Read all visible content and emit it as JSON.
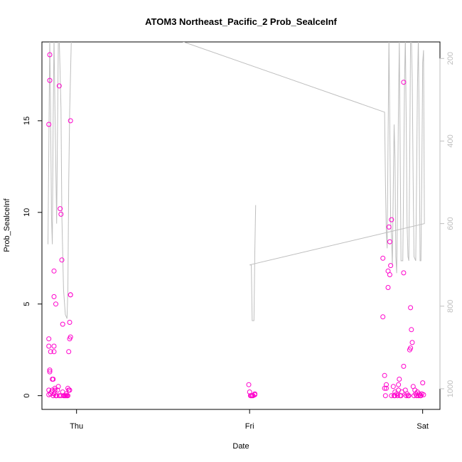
{
  "chart_data": {
    "type": "scatter",
    "title": "ATOM3 Northeast_Pacific_2 Prob_SealceInf",
    "xlabel": "Date",
    "ylabel": "Prob_SealceInf",
    "x_ticks": [
      "Thu",
      "Fri",
      "Sat"
    ],
    "y_ticks": [
      "0",
      "5",
      "10",
      "15"
    ],
    "y2_ticks": [
      "200",
      "400",
      "600",
      "800",
      "1000"
    ],
    "xlim": [
      -0.2,
      2.1
    ],
    "ylim": [
      -0.75,
      19.3
    ],
    "y2lim": [
      1050,
      160
    ],
    "grid": false,
    "point_color": "#FF00CC",
    "line_color": "#BEBEBE",
    "series": [
      {
        "points": [
          [
            -0.16,
            0.05
          ],
          [
            -0.16,
            0.3
          ],
          [
            -0.16,
            2.7
          ],
          [
            -0.16,
            3.1
          ],
          [
            -0.16,
            14.8
          ],
          [
            -0.155,
            17.2
          ],
          [
            -0.155,
            18.6
          ],
          [
            -0.155,
            1.3
          ],
          [
            -0.155,
            1.4
          ],
          [
            -0.15,
            0.1
          ],
          [
            -0.15,
            2.4
          ],
          [
            -0.145,
            0.2
          ],
          [
            -0.14,
            0.3
          ],
          [
            -0.14,
            0.9
          ],
          [
            -0.135,
            0.0
          ],
          [
            -0.135,
            0.9
          ],
          [
            -0.13,
            0.1
          ],
          [
            -0.13,
            2.4
          ],
          [
            -0.13,
            2.7
          ],
          [
            -0.13,
            6.8
          ],
          [
            -0.13,
            5.4
          ],
          [
            -0.125,
            0.3
          ],
          [
            -0.125,
            0.4
          ],
          [
            -0.12,
            0.0
          ],
          [
            -0.12,
            5.0
          ],
          [
            -0.115,
            0.0
          ],
          [
            -0.11,
            0.3
          ],
          [
            -0.105,
            0.5
          ],
          [
            -0.1,
            0.0
          ],
          [
            -0.1,
            16.9
          ],
          [
            -0.095,
            10.2
          ],
          [
            -0.09,
            9.9
          ],
          [
            -0.09,
            0.0
          ],
          [
            -0.085,
            7.4
          ],
          [
            -0.08,
            3.9
          ],
          [
            -0.08,
            0.2
          ],
          [
            -0.075,
            0.0
          ],
          [
            -0.07,
            0.0
          ],
          [
            -0.065,
            0.0
          ],
          [
            -0.06,
            0.0
          ],
          [
            -0.06,
            0.1
          ],
          [
            -0.055,
            0.0
          ],
          [
            -0.05,
            0.0
          ],
          [
            -0.05,
            0.4
          ],
          [
            -0.045,
            2.4
          ],
          [
            -0.045,
            0.3
          ],
          [
            -0.04,
            0.3
          ],
          [
            -0.04,
            3.1
          ],
          [
            -0.04,
            4.0
          ],
          [
            -0.035,
            3.2
          ],
          [
            -0.035,
            15.0
          ],
          [
            -0.035,
            5.5
          ],
          [
            -0.035,
            5.5
          ],
          [
            0.995,
            0.6
          ],
          [
            1.0,
            0.2
          ],
          [
            1.005,
            0.0
          ],
          [
            1.01,
            0.0
          ],
          [
            1.015,
            0.0
          ],
          [
            1.02,
            0.0
          ],
          [
            1.03,
            0.05
          ],
          [
            1.03,
            0.1
          ],
          [
            1.77,
            7.5
          ],
          [
            1.77,
            4.3
          ],
          [
            1.78,
            1.1
          ],
          [
            1.78,
            0.4
          ],
          [
            1.785,
            0.0
          ],
          [
            1.79,
            0.4
          ],
          [
            1.79,
            0.6
          ],
          [
            1.8,
            6.8
          ],
          [
            1.8,
            5.9
          ],
          [
            1.805,
            9.2
          ],
          [
            1.81,
            8.4
          ],
          [
            1.81,
            6.6
          ],
          [
            1.815,
            7.1
          ],
          [
            1.82,
            9.6
          ],
          [
            1.82,
            0.0
          ],
          [
            1.83,
            0.5
          ],
          [
            1.835,
            0.0
          ],
          [
            1.84,
            0.2
          ],
          [
            1.84,
            0.0
          ],
          [
            1.85,
            0.1
          ],
          [
            1.855,
            0.0
          ],
          [
            1.86,
            0.3
          ],
          [
            1.86,
            0.6
          ],
          [
            1.865,
            0.9
          ],
          [
            1.87,
            0.0
          ],
          [
            1.875,
            0.0
          ],
          [
            1.88,
            0.2
          ],
          [
            1.89,
            6.7
          ],
          [
            1.89,
            17.1
          ],
          [
            1.89,
            1.6
          ],
          [
            1.9,
            0.3
          ],
          [
            1.905,
            0.0
          ],
          [
            1.91,
            0.1
          ],
          [
            1.915,
            0.0
          ],
          [
            1.92,
            0.0
          ],
          [
            1.925,
            2.5
          ],
          [
            1.93,
            4.8
          ],
          [
            1.93,
            2.6
          ],
          [
            1.935,
            3.6
          ],
          [
            1.94,
            2.9
          ],
          [
            1.945,
            0.5
          ],
          [
            1.95,
            0.0
          ],
          [
            1.955,
            0.3
          ],
          [
            1.96,
            0.1
          ],
          [
            1.965,
            0.0
          ],
          [
            1.97,
            0.2
          ],
          [
            1.975,
            0.0
          ],
          [
            1.98,
            0.1
          ],
          [
            1.985,
            0.0
          ],
          [
            1.99,
            0.0
          ],
          [
            1.995,
            0.1
          ],
          [
            2.0,
            0.7
          ],
          [
            2.005,
            0.05
          ]
        ]
      },
      {
        "axis": "right",
        "points": [
          [
            -0.165,
            650
          ],
          [
            -0.16,
            420
          ],
          [
            -0.155,
            150
          ],
          [
            -0.15,
            330
          ],
          [
            -0.145,
            580
          ],
          [
            -0.14,
            650
          ],
          [
            -0.135,
            350
          ],
          [
            -0.13,
            150
          ],
          [
            -0.125,
            320
          ],
          [
            -0.115,
            600
          ],
          [
            -0.105,
            150
          ],
          [
            -0.1,
            150
          ],
          [
            -0.09,
            320
          ],
          [
            -0.085,
            580
          ],
          [
            -0.075,
            760
          ],
          [
            -0.065,
            820
          ],
          [
            -0.055,
            830
          ],
          [
            -0.05,
            760
          ],
          [
            -0.045,
            500
          ],
          [
            -0.04,
            330
          ],
          [
            -0.03,
            150
          ],
          [
            0.55,
            150
          ],
          [
            1.78,
            330
          ],
          [
            1.785,
            500
          ],
          [
            1.79,
            620
          ],
          [
            1.795,
            660
          ],
          [
            1.8,
            400
          ],
          [
            1.805,
            150
          ],
          [
            1.81,
            360
          ],
          [
            1.815,
            590
          ],
          [
            1.82,
            630
          ],
          [
            1.825,
            700
          ],
          [
            1.83,
            520
          ],
          [
            1.835,
            360
          ],
          [
            1.84,
            440
          ],
          [
            1.845,
            680
          ],
          [
            1.85,
            720
          ],
          [
            1.855,
            560
          ],
          [
            1.86,
            320
          ],
          [
            1.865,
            160
          ],
          [
            1.87,
            420
          ],
          [
            1.875,
            690
          ],
          [
            1.885,
            690
          ],
          [
            1.89,
            500
          ],
          [
            1.895,
            260
          ],
          [
            1.9,
            150
          ],
          [
            1.905,
            350
          ],
          [
            1.91,
            600
          ],
          [
            1.915,
            680
          ],
          [
            1.92,
            690
          ],
          [
            1.925,
            450
          ],
          [
            1.93,
            160
          ],
          [
            1.935,
            150
          ],
          [
            1.94,
            250
          ],
          [
            1.945,
            500
          ],
          [
            1.95,
            680
          ],
          [
            1.96,
            690
          ],
          [
            1.965,
            500
          ],
          [
            1.97,
            270
          ],
          [
            1.975,
            150
          ],
          [
            1.98,
            380
          ],
          [
            1.985,
            690
          ],
          [
            1.99,
            690
          ],
          [
            1.995,
            500
          ],
          [
            2.0,
            210
          ],
          [
            2.005,
            180
          ],
          [
            2.01,
            600
          ],
          [
            1.0,
            700
          ],
          [
            1.01,
            700
          ],
          [
            1.015,
            835
          ],
          [
            1.025,
            835
          ],
          [
            1.03,
            670
          ],
          [
            1.035,
            555
          ]
        ]
      }
    ]
  }
}
